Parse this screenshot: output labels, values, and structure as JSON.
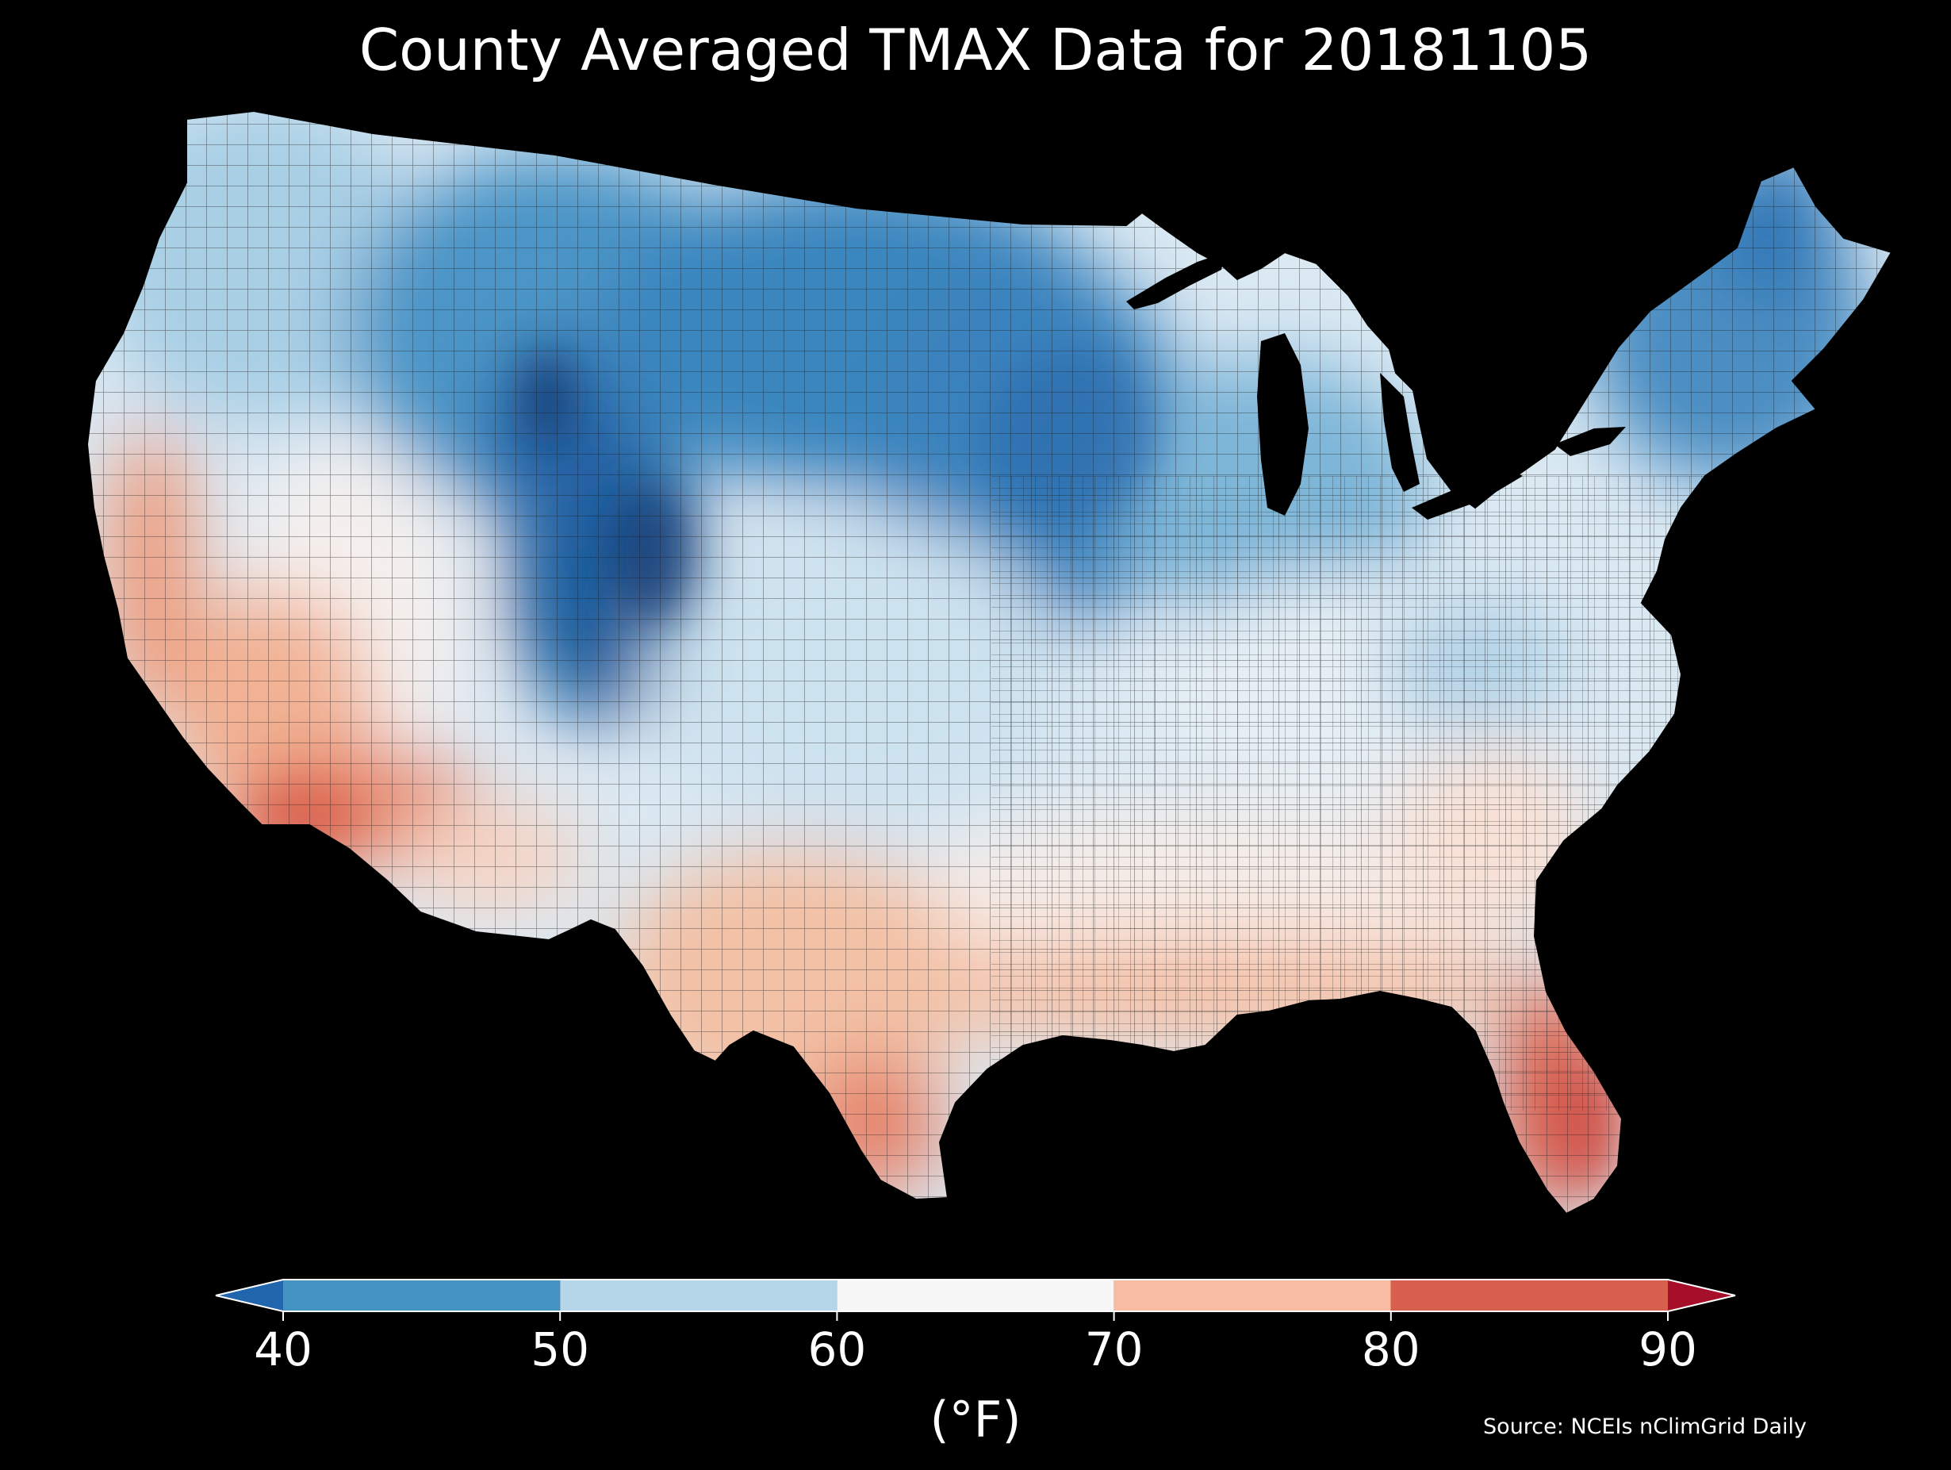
{
  "title": "County Averaged TMAX Data for 20181105",
  "colorbar": {
    "ticks": [
      "40",
      "50",
      "60",
      "70",
      "80",
      "90"
    ],
    "tick_values": [
      40,
      50,
      60,
      70,
      80,
      90
    ],
    "unit": "(°F)",
    "extend": "both",
    "bins": [
      {
        "from": 30,
        "to": 40,
        "color": "#2166ac"
      },
      {
        "from": 40,
        "to": 50,
        "color": "#4393c3"
      },
      {
        "from": 50,
        "to": 60,
        "color": "#b4d6e8"
      },
      {
        "from": 60,
        "to": 70,
        "color": "#f7f7f7"
      },
      {
        "from": 70,
        "to": 80,
        "color": "#f7bca1"
      },
      {
        "from": 80,
        "to": 90,
        "color": "#d6604d"
      },
      {
        "from": 90,
        "to": 100,
        "color": "#a50f2a"
      }
    ]
  },
  "source": "Source: NCEIs nClimGrid Daily",
  "map": {
    "region": "Contiguous United States",
    "unit_of_measure": "county",
    "variable": "TMAX",
    "date": "20181105",
    "background": "#000000",
    "county_border_color": "#1a1a1a",
    "pattern": [
      {
        "area": "Northern Plains / Upper Midwest",
        "value_range": [
          35,
          50
        ]
      },
      {
        "area": "Central Rockies (Wyoming / Colorado)",
        "value_range": [
          35,
          45
        ]
      },
      {
        "area": "Maine / Northern New England",
        "value_range": [
          40,
          50
        ]
      },
      {
        "area": "Pacific Northwest",
        "value_range": [
          50,
          60
        ]
      },
      {
        "area": "Great Basin / Nevada",
        "value_range": [
          60,
          70
        ]
      },
      {
        "area": "Ohio Valley / Mid-Atlantic",
        "value_range": [
          55,
          65
        ]
      },
      {
        "area": "Southeast / Gulf Coast",
        "value_range": [
          65,
          75
        ]
      },
      {
        "area": "Southern Texas",
        "value_range": [
          70,
          80
        ]
      },
      {
        "area": "Southern California / Arizona",
        "value_range": [
          75,
          85
        ]
      },
      {
        "area": "South Florida",
        "value_range": [
          80,
          85
        ]
      }
    ]
  }
}
